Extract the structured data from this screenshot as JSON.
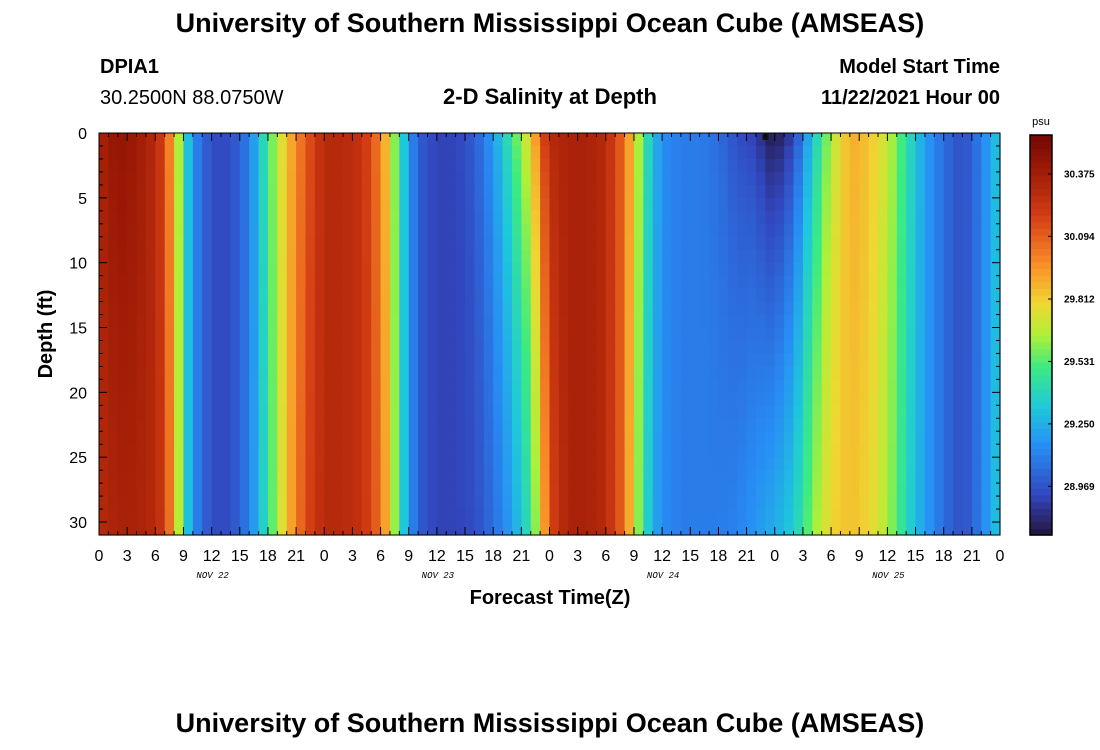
{
  "header": {
    "title": "University of Southern Mississippi Ocean Cube (AMSEAS)",
    "station_id": "DPIA1",
    "station_coords": "30.2500N  88.0750W",
    "subtitle": "2-D Salinity at Depth",
    "model_start_label": "Model Start Time",
    "model_start_value": "11/22/2021 Hour 00"
  },
  "footer": {
    "title": "University of Southern Mississippi Ocean Cube (AMSEAS)"
  },
  "chart_data": {
    "type": "heatmap",
    "title": "2-D Salinity at Depth",
    "xlabel": "Forecast Time(Z)",
    "ylabel": "Depth (ft)",
    "x_ticks": [
      "0",
      "3",
      "6",
      "9",
      "12",
      "15",
      "18",
      "21",
      "0",
      "3",
      "6",
      "9",
      "12",
      "15",
      "18",
      "21",
      "0",
      "3",
      "6",
      "9",
      "12",
      "15",
      "18",
      "21",
      "0",
      "3",
      "6",
      "9",
      "12",
      "15",
      "18",
      "21",
      "0"
    ],
    "x_range_hours": [
      0,
      96
    ],
    "day_labels": [
      {
        "label": "NOV 22",
        "hour": 12
      },
      {
        "label": "NOV 23",
        "hour": 36
      },
      {
        "label": "NOV 24",
        "hour": 60
      },
      {
        "label": "NOV 25",
        "hour": 84
      }
    ],
    "y_ticks": [
      0,
      5,
      10,
      15,
      20,
      25,
      30
    ],
    "y_range_ft": [
      0,
      31
    ],
    "y_inverted": true,
    "colorbar": {
      "unit": "psu",
      "range": [
        28.75,
        30.55
      ],
      "ticks": [
        "30.375",
        "30.094",
        "29.812",
        "29.531",
        "29.250",
        "28.969"
      ],
      "tick_values": [
        30.375,
        30.094,
        29.812,
        29.531,
        29.25,
        28.969
      ]
    },
    "time_hours": [
      0,
      2,
      4,
      6,
      7,
      8,
      9,
      10,
      12,
      14,
      16,
      18,
      20,
      22,
      24,
      26,
      28,
      30,
      31,
      32,
      33,
      34,
      36,
      38,
      40,
      42,
      44,
      46,
      47,
      48,
      50,
      52,
      54,
      56,
      57,
      58,
      59,
      60,
      62,
      64,
      66,
      68,
      70,
      71,
      72,
      74,
      76,
      78,
      80,
      82,
      84,
      86,
      88,
      90,
      92,
      94,
      96
    ],
    "salinity_surface_psu": [
      30.35,
      30.45,
      30.4,
      30.3,
      30.15,
      29.85,
      29.45,
      29.15,
      28.95,
      28.95,
      29.1,
      29.5,
      29.85,
      30.1,
      30.3,
      30.3,
      30.25,
      30.0,
      29.75,
      29.45,
      29.2,
      29.0,
      28.92,
      28.92,
      29.0,
      29.2,
      29.5,
      29.8,
      30.1,
      30.3,
      30.35,
      30.35,
      30.3,
      30.05,
      29.8,
      29.5,
      29.3,
      29.15,
      29.1,
      29.1,
      29.05,
      28.95,
      28.9,
      28.8,
      28.75,
      28.9,
      29.3,
      29.65,
      29.9,
      29.85,
      29.7,
      29.45,
      29.2,
      29.05,
      28.95,
      29.1,
      29.35
    ],
    "salinity_bottom_psu": [
      30.3,
      30.35,
      30.35,
      30.3,
      30.2,
      29.9,
      29.45,
      29.15,
      28.95,
      28.95,
      29.1,
      29.45,
      29.85,
      30.15,
      30.3,
      30.3,
      30.25,
      30.05,
      29.8,
      29.45,
      29.2,
      29.0,
      28.92,
      28.92,
      28.95,
      29.05,
      29.2,
      29.45,
      29.75,
      30.15,
      30.35,
      30.35,
      30.3,
      30.05,
      29.75,
      29.45,
      29.25,
      29.15,
      29.1,
      29.1,
      29.1,
      29.12,
      29.18,
      29.22,
      29.25,
      29.35,
      29.6,
      29.8,
      29.85,
      29.8,
      29.65,
      29.4,
      29.2,
      29.05,
      28.95,
      29.1,
      29.35
    ]
  }
}
